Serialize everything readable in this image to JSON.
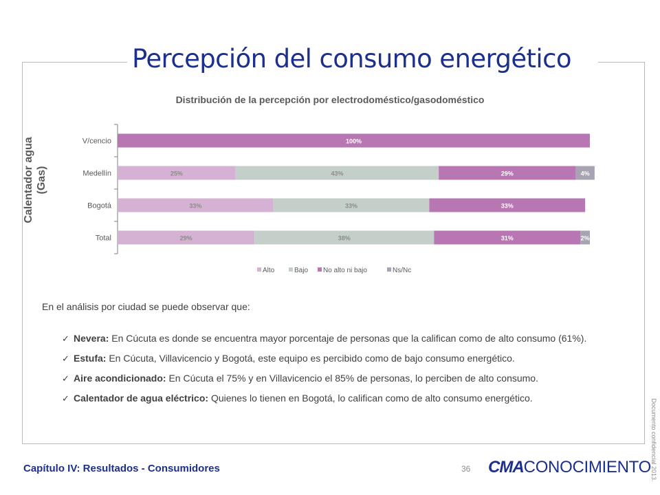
{
  "slide": {
    "title": "Percepción del consumo energético",
    "vertical_label_line1": "Calentador agua",
    "vertical_label_line2": "(Gas)",
    "intro": "En el análisis por ciudad se puede observar que:",
    "bullets": [
      {
        "term": "Nevera:",
        "text": " En Cúcuta es donde se encuentra mayor porcentaje de personas que la califican como de alto consumo (61%)."
      },
      {
        "term": "Estufa:",
        "text": " En Cúcuta, Villavicencio y Bogotá, este equipo es percibido como de bajo consumo energético."
      },
      {
        "term": "Aire acondicionado:",
        "text": " En Cúcuta el 75% y en Villavicencio el 85% de personas, lo perciben de alto consumo."
      },
      {
        "term": "Calentador de agua eléctrico:",
        "text": " Quienes lo tienen en Bogotá, lo califican como de alto consumo energético."
      }
    ],
    "side_note": "Documento confidencial 2013.",
    "footer_chapter": "Capítulo IV: Resultados - Consumidores",
    "page_number": "36",
    "logo_strong": "CMA",
    "logo_rest": "CONOCIMIENTO",
    "check_icon": "check-icon"
  },
  "chart_data": {
    "type": "bar",
    "orientation": "horizontal",
    "stacked": true,
    "title": "Distribución de la percepción por electrodoméstico/gasodoméstico",
    "categories": [
      "V/cencio",
      "Medellín",
      "Bogotá",
      "Total"
    ],
    "series": [
      {
        "name": "Alto",
        "color": "#d5b1d3",
        "values": [
          0,
          25,
          33,
          29
        ],
        "labels": [
          "",
          "25%",
          "33%",
          "29%"
        ]
      },
      {
        "name": "Bajo",
        "color": "#c5cfca",
        "values": [
          0,
          43,
          33,
          38
        ],
        "labels": [
          "",
          "43%",
          "33%",
          "38%"
        ]
      },
      {
        "name": "No alto ni bajo",
        "color": "#b877b2",
        "values": [
          100,
          29,
          33,
          31
        ],
        "labels": [
          "100%",
          "29%",
          "33%",
          "31%"
        ]
      },
      {
        "name": "Ns/Nc",
        "color": "#a7a3b3",
        "values": [
          0,
          4,
          0,
          2
        ],
        "labels": [
          "",
          "4%",
          "",
          "2%"
        ]
      }
    ],
    "xlim": [
      0,
      100
    ],
    "grid": false,
    "legend_position": "bottom"
  }
}
